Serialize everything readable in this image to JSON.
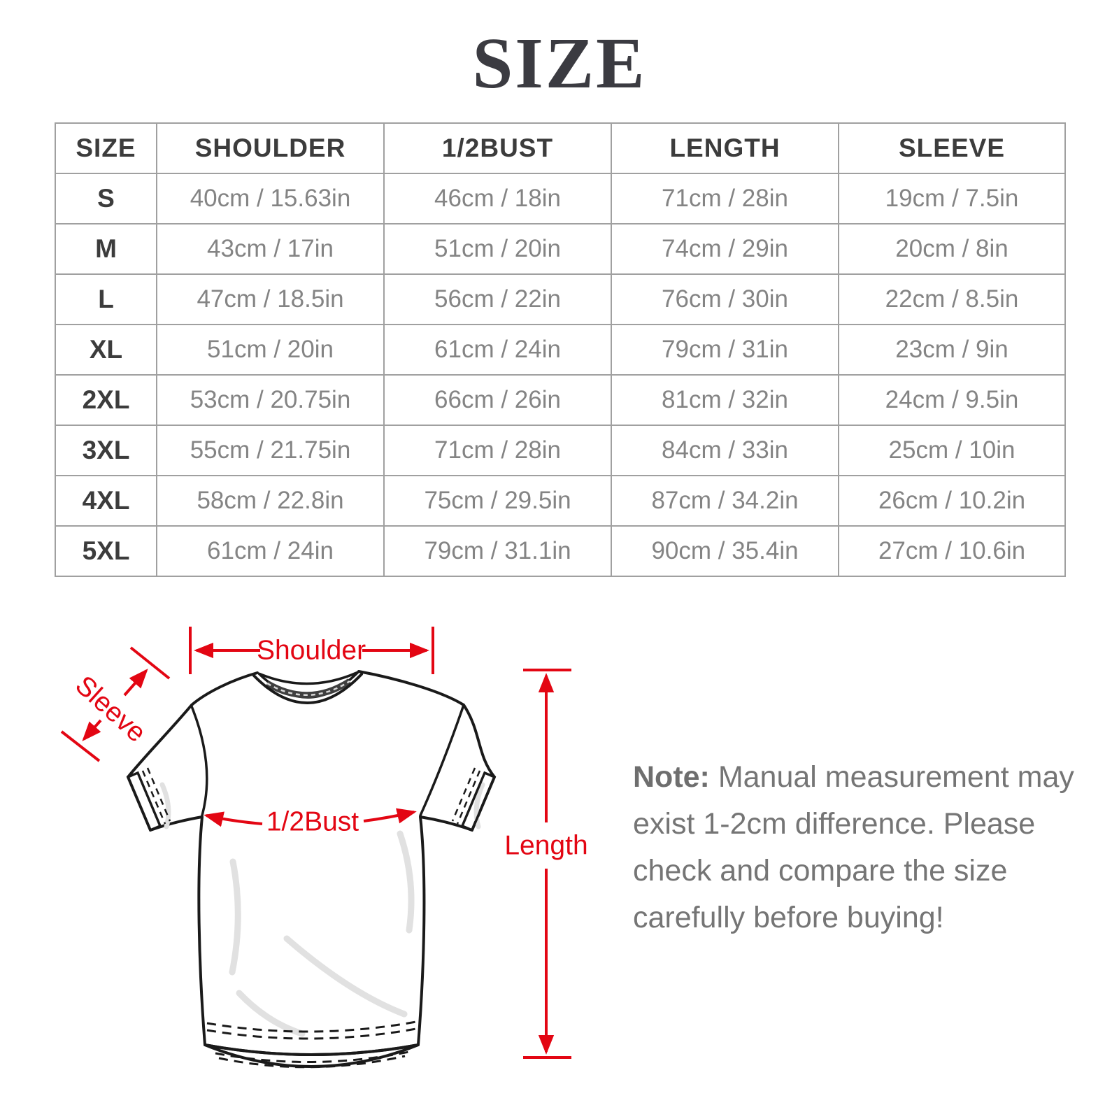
{
  "page": {
    "title": "SIZE"
  },
  "size_table": {
    "headers": [
      "SIZE",
      "SHOULDER",
      "1/2BUST",
      "LENGTH",
      "SLEEVE"
    ],
    "rows": [
      [
        "S",
        "40cm / 15.63in",
        "46cm / 18in",
        "71cm / 28in",
        "19cm / 7.5in"
      ],
      [
        "M",
        "43cm / 17in",
        "51cm / 20in",
        "74cm / 29in",
        "20cm / 8in"
      ],
      [
        "L",
        "47cm / 18.5in",
        "56cm / 22in",
        "76cm / 30in",
        "22cm / 8.5in"
      ],
      [
        "XL",
        "51cm / 20in",
        "61cm / 24in",
        "79cm / 31in",
        "23cm / 9in"
      ],
      [
        "2XL",
        "53cm / 20.75in",
        "66cm / 26in",
        "81cm / 32in",
        "24cm / 9.5in"
      ],
      [
        "3XL",
        "55cm / 21.75in",
        "71cm / 28in",
        "84cm / 33in",
        "25cm / 10in"
      ],
      [
        "4XL",
        "58cm / 22.8in",
        "75cm / 29.5in",
        "87cm / 34.2in",
        "26cm / 10.2in"
      ],
      [
        "5XL",
        "61cm / 24in",
        "79cm / 31.1in",
        "90cm / 35.4in",
        "27cm / 10.6in"
      ]
    ]
  },
  "diagram": {
    "accent_color": "#e30613",
    "shoulder_label": "Shoulder",
    "sleeve_label": "Sleeve",
    "bust_label": "1/2Bust",
    "length_label": "Length"
  },
  "note": {
    "label": "Note:",
    "lines": [
      "Manual measurement may",
      "exist 1-2cm difference. Please",
      "check and compare the size",
      "carefully before buying!"
    ]
  }
}
